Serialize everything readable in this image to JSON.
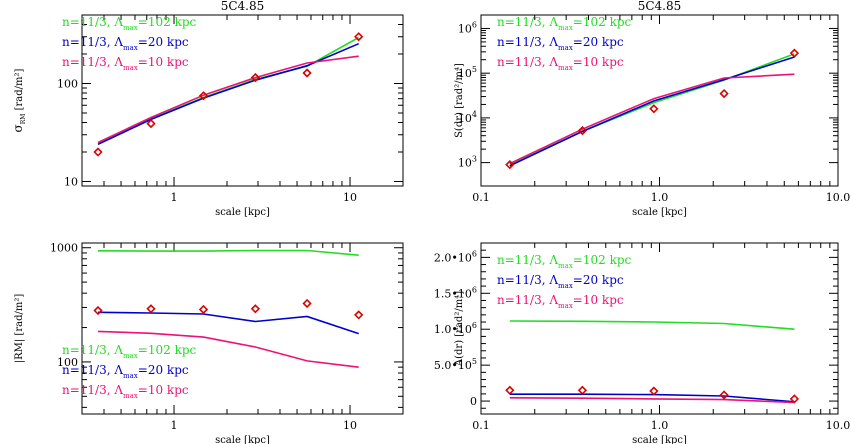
{
  "figure": {
    "panels": {
      "tl": {
        "title": "5C4.85",
        "xlabel": "scale [kpc]",
        "ylabel": "σ",
        "ylabel_sub": "RM",
        "ylabel_rest": " [rad/m²]"
      },
      "tr": {
        "title": "5C4.85",
        "xlabel": "scale [kpc]",
        "ylabel": "S(dr) [rad²/m⁴]"
      },
      "bl": {
        "xlabel": "scale [kpc]",
        "ylabel": "|RM| [rad/m²]"
      },
      "br": {
        "xlabel": "scale [kpc]",
        "ylabel": "A(dr) [rad²/m⁴]"
      }
    },
    "legend": [
      {
        "pre": "n=11/3, Λ",
        "sub": "max",
        "post": "=102 kpc",
        "color": "#22dd22"
      },
      {
        "pre": "n=11/3, Λ",
        "sub": "max",
        "post": "=20 kpc",
        "color": "#0000cc"
      },
      {
        "pre": "n=11/3, Λ",
        "sub": "max",
        "post": "=10 kpc",
        "color": "#ee1177"
      }
    ],
    "colors": {
      "obs": "#dd0000",
      "axis": "#000000"
    }
  },
  "chart_data": [
    {
      "id": "tl",
      "type": "line",
      "title": "5C4.85",
      "xlabel": "scale [kpc]",
      "ylabel": "σ_RM [rad/m²]",
      "xscale": "log",
      "yscale": "log",
      "xlim": [
        0.3,
        20
      ],
      "ylim": [
        9,
        500
      ],
      "xticks": [
        {
          "v": 1,
          "label": "1"
        },
        {
          "v": 10,
          "label": "10"
        }
      ],
      "yticks": [
        {
          "v": 10,
          "label": "10"
        },
        {
          "v": 100,
          "label": "100"
        }
      ],
      "xminor": [
        0.4,
        0.5,
        0.6,
        0.7,
        0.8,
        0.9,
        2,
        3,
        4,
        5,
        6,
        7,
        8,
        9,
        20
      ],
      "yminor": [
        20,
        30,
        40,
        50,
        60,
        70,
        80,
        90,
        200,
        300,
        400
      ],
      "observed": {
        "x": [
          0.37,
          0.74,
          1.47,
          2.9,
          5.7,
          11.2
        ],
        "y": [
          20,
          39,
          75,
          115,
          128,
          300
        ]
      },
      "series": [
        {
          "name": "n=11/3, Λmax=102 kpc",
          "x": [
            0.37,
            0.74,
            1.47,
            2.9,
            5.7,
            11.2
          ],
          "y": [
            24,
            44,
            72,
            110,
            150,
            295
          ]
        },
        {
          "name": "n=11/3, Λmax=20 kpc",
          "x": [
            0.37,
            0.74,
            1.47,
            2.9,
            5.7,
            11.2
          ],
          "y": [
            24,
            43,
            71,
            108,
            152,
            255
          ]
        },
        {
          "name": "n=11/3, Λmax=10 kpc",
          "x": [
            0.37,
            0.74,
            1.47,
            2.9,
            5.7,
            11.2
          ],
          "y": [
            25,
            45,
            76,
            115,
            162,
            190
          ]
        }
      ]
    },
    {
      "id": "tr",
      "type": "line",
      "title": "5C4.85",
      "xlabel": "scale [kpc]",
      "ylabel": "S(dr) [rad²/m⁴]",
      "xscale": "log",
      "yscale": "log",
      "xlim": [
        0.1,
        10
      ],
      "ylim": [
        300,
        2000000
      ],
      "xticks": [
        {
          "v": 0.1,
          "label": "0.1"
        },
        {
          "v": 1,
          "label": "1.0"
        },
        {
          "v": 10,
          "label": "10.0"
        }
      ],
      "yticks": [
        {
          "v": 1000,
          "label": "10",
          "exp": "3"
        },
        {
          "v": 10000,
          "label": "10",
          "exp": "4"
        },
        {
          "v": 100000,
          "label": "10",
          "exp": "5"
        },
        {
          "v": 1000000,
          "label": "10",
          "exp": "6"
        }
      ],
      "xminor": [
        0.2,
        0.3,
        0.4,
        0.5,
        0.6,
        0.7,
        0.8,
        0.9,
        2,
        3,
        4,
        5,
        6,
        7,
        8,
        9
      ],
      "yminor": [
        2000,
        3000,
        4000,
        5000,
        6000,
        7000,
        8000,
        9000,
        20000,
        30000,
        40000,
        50000,
        60000,
        70000,
        80000,
        90000,
        200000,
        300000,
        400000,
        500000,
        600000,
        700000,
        800000,
        900000
      ],
      "observed": {
        "x": [
          0.145,
          0.37,
          0.93,
          2.3,
          5.7
        ],
        "y": [
          900,
          5200,
          16000,
          35000,
          280000
        ]
      },
      "series": [
        {
          "name": "n=11/3, Λmax=102 kpc",
          "x": [
            0.145,
            0.37,
            0.93,
            2.3,
            5.7
          ],
          "y": [
            900,
            5000,
            22000,
            70000,
            270000
          ]
        },
        {
          "name": "n=11/3, Λmax=20 kpc",
          "x": [
            0.145,
            0.37,
            0.93,
            2.3,
            5.7
          ],
          "y": [
            850,
            5000,
            24000,
            72000,
            230000
          ]
        },
        {
          "name": "n=11/3, Λmax=10 kpc",
          "x": [
            0.145,
            0.37,
            0.93,
            2.3,
            5.7
          ],
          "y": [
            950,
            5600,
            27000,
            78000,
            95000
          ]
        }
      ]
    },
    {
      "id": "bl",
      "type": "line",
      "xlabel": "scale [kpc]",
      "ylabel": "|RM| [rad/m²]",
      "xscale": "log",
      "yscale": "log",
      "xlim": [
        0.3,
        20
      ],
      "ylim": [
        35,
        1100
      ],
      "xticks": [
        {
          "v": 1,
          "label": "1"
        },
        {
          "v": 10,
          "label": "10"
        }
      ],
      "yticks": [
        {
          "v": 100,
          "label": "100"
        },
        {
          "v": 1000,
          "label": "1000"
        }
      ],
      "xminor": [
        0.4,
        0.5,
        0.6,
        0.7,
        0.8,
        0.9,
        2,
        3,
        4,
        5,
        6,
        7,
        8,
        9,
        20
      ],
      "yminor": [
        40,
        50,
        60,
        70,
        80,
        90,
        200,
        300,
        400,
        500,
        600,
        700,
        800,
        900
      ],
      "observed": {
        "x": [
          0.37,
          0.74,
          1.47,
          2.9,
          5.7,
          11.2
        ],
        "y": [
          282,
          292,
          288,
          292,
          325,
          258
        ]
      },
      "series": [
        {
          "name": "n=11/3, Λmax=102 kpc",
          "x": [
            0.37,
            0.74,
            1.47,
            2.9,
            5.7,
            11.2
          ],
          "y": [
            940,
            935,
            935,
            945,
            945,
            860
          ]
        },
        {
          "name": "n=11/3, Λmax=20 kpc",
          "x": [
            0.37,
            0.74,
            1.47,
            2.9,
            5.7,
            11.2
          ],
          "y": [
            272,
            268,
            263,
            226,
            250,
            177
          ]
        },
        {
          "name": "n=11/3, Λmax=10 kpc",
          "x": [
            0.37,
            0.74,
            1.47,
            2.9,
            5.7,
            11.2
          ],
          "y": [
            185,
            178,
            165,
            135,
            102,
            90
          ]
        }
      ]
    },
    {
      "id": "br",
      "type": "line",
      "xlabel": "scale [kpc]",
      "ylabel": "A(dr) [rad²/m⁴]",
      "xscale": "log",
      "yscale": "linear",
      "xlim": [
        0.1,
        10
      ],
      "ylim": [
        -180000,
        2200000
      ],
      "xticks": [
        {
          "v": 0.1,
          "label": "0.1"
        },
        {
          "v": 1,
          "label": "1.0"
        },
        {
          "v": 10,
          "label": "10.0"
        }
      ],
      "yticks": [
        {
          "v": 0,
          "label": "0"
        },
        {
          "v": 500000,
          "label": "5.0•10",
          "exp": "5"
        },
        {
          "v": 1000000,
          "label": "1.0•10",
          "exp": "6"
        },
        {
          "v": 1500000,
          "label": "1.5•10",
          "exp": "6"
        },
        {
          "v": 2000000,
          "label": "2.0•10",
          "exp": "6"
        }
      ],
      "xminor": [
        0.2,
        0.3,
        0.4,
        0.5,
        0.6,
        0.7,
        0.8,
        0.9,
        2,
        3,
        4,
        5,
        6,
        7,
        8,
        9
      ],
      "yminor": [
        100000,
        200000,
        300000,
        400000,
        600000,
        700000,
        800000,
        900000,
        1100000,
        1200000,
        1300000,
        1400000,
        1600000,
        1700000,
        1800000,
        1900000,
        2100000,
        -100000
      ],
      "observed": {
        "x": [
          0.145,
          0.37,
          0.93,
          2.3,
          5.7
        ],
        "y": [
          150000,
          150000,
          140000,
          85000,
          30000
        ]
      },
      "series": [
        {
          "name": "n=11/3, Λmax=102 kpc",
          "x": [
            0.145,
            0.37,
            0.93,
            2.3,
            5.7
          ],
          "y": [
            1115000,
            1110000,
            1100000,
            1080000,
            1000000
          ]
        },
        {
          "name": "n=11/3, Λmax=20 kpc",
          "x": [
            0.145,
            0.37,
            0.93,
            2.3,
            5.7
          ],
          "y": [
            95000,
            95000,
            90000,
            70000,
            -10000
          ]
        },
        {
          "name": "n=11/3, Λmax=10 kpc",
          "x": [
            0.145,
            0.37,
            0.93,
            2.3,
            5.7
          ],
          "y": [
            45000,
            40000,
            30000,
            20000,
            -20000
          ]
        }
      ]
    }
  ]
}
